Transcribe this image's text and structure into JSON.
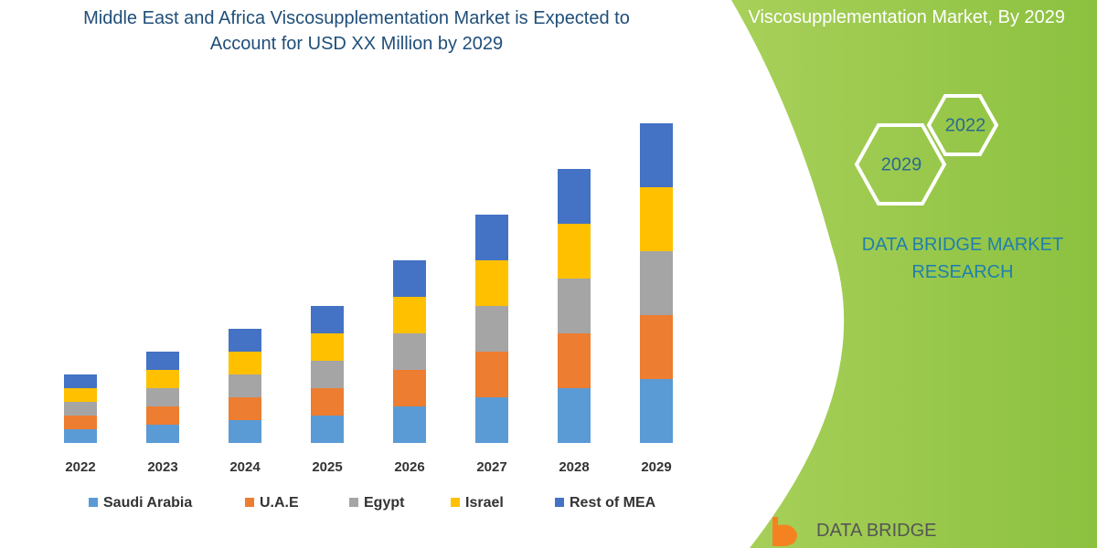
{
  "chart_data": {
    "type": "stacked-bar",
    "title": "Middle East and Africa Viscosupplementation Market is Expected to Account for USD XX Million by 2029",
    "categories": [
      "2022",
      "2023",
      "2024",
      "2025",
      "2026",
      "2027",
      "2028",
      "2029"
    ],
    "series": [
      {
        "name": "Saudi Arabia",
        "color": "#5b9bd5",
        "values": [
          15,
          20,
          25,
          30,
          40,
          50,
          60,
          70
        ]
      },
      {
        "name": "U.A.E",
        "color": "#ed7d31",
        "values": [
          15,
          20,
          25,
          30,
          40,
          50,
          60,
          70
        ]
      },
      {
        "name": "Egypt",
        "color": "#a5a5a5",
        "values": [
          15,
          20,
          25,
          30,
          40,
          50,
          60,
          70
        ]
      },
      {
        "name": "Israel",
        "color": "#ffc000",
        "values": [
          15,
          20,
          25,
          30,
          40,
          50,
          60,
          70
        ]
      },
      {
        "name": "Rest of MEA",
        "color": "#4472c4",
        "values": [
          15,
          20,
          25,
          30,
          40,
          50,
          60,
          70
        ]
      }
    ]
  },
  "panel": {
    "heading": "Viscosupplementation Market, By 2029",
    "hex_labels": [
      "2022",
      "2029"
    ],
    "brand": "DATA BRIDGE MARKET RESEARCH",
    "logo": "DATA BRIDGE"
  }
}
